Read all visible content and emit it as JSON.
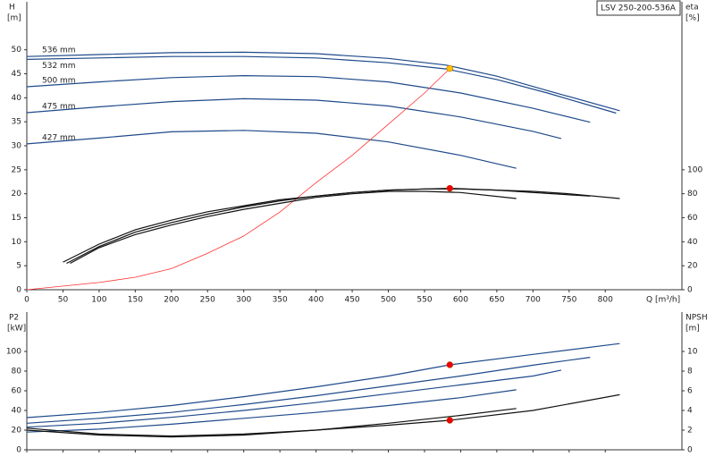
{
  "model": "LSV 250-200-536A",
  "chart_data": [
    {
      "type": "line",
      "ylabel": "H",
      "yunit": "[m]",
      "y2label": "eta",
      "y2unit": "[%]",
      "xlabel": "Q [m³/h]",
      "xlim": [
        0,
        906
      ],
      "xticks": [
        0,
        50,
        100,
        150,
        200,
        250,
        300,
        350,
        400,
        450,
        500,
        550,
        600,
        650,
        700,
        750,
        800
      ],
      "ylim": [
        0,
        60
      ],
      "yticks": [
        0,
        5,
        10,
        15,
        20,
        25,
        30,
        35,
        40,
        45,
        50
      ],
      "y2lim": [
        0,
        240
      ],
      "y2ticks": [
        0,
        20,
        40,
        60,
        80,
        100
      ],
      "series": [
        {
          "name": "536 mm",
          "color": "#1f4a8a",
          "x": [
            0,
            100,
            200,
            300,
            400,
            500,
            580,
            650,
            720,
            820
          ],
          "values": [
            48.6,
            49.0,
            49.4,
            49.5,
            49.2,
            48.2,
            46.8,
            44.5,
            41.5,
            37.3
          ]
        },
        {
          "name": "532 mm",
          "color": "#1f4a8a",
          "x": [
            0,
            100,
            200,
            300,
            400,
            500,
            580,
            650,
            720,
            815
          ],
          "values": [
            48.0,
            48.3,
            48.6,
            48.6,
            48.3,
            47.3,
            46.0,
            43.8,
            41.0,
            36.8
          ]
        },
        {
          "name": "500 mm",
          "color": "#1f4a8a",
          "x": [
            0,
            100,
            200,
            300,
            400,
            500,
            600,
            700,
            779
          ],
          "values": [
            42.3,
            43.3,
            44.2,
            44.6,
            44.4,
            43.3,
            41.0,
            37.8,
            34.9
          ]
        },
        {
          "name": "475 mm",
          "color": "#1f4a8a",
          "x": [
            0,
            100,
            200,
            300,
            400,
            500,
            600,
            700,
            739
          ],
          "values": [
            36.9,
            38.1,
            39.2,
            39.8,
            39.5,
            38.3,
            36.0,
            33.0,
            31.5
          ]
        },
        {
          "name": "427 mm",
          "color": "#1f4a8a",
          "x": [
            0,
            100,
            200,
            300,
            400,
            500,
            600,
            677
          ],
          "values": [
            30.4,
            31.6,
            32.9,
            33.2,
            32.6,
            30.8,
            28.0,
            25.3
          ]
        },
        {
          "color": "#ff3030",
          "x": [
            0,
            100,
            150,
            200,
            250,
            300,
            350,
            400,
            450,
            500,
            550,
            585
          ],
          "values": [
            0,
            1.5,
            2.6,
            4.4,
            7.6,
            11.2,
            16.2,
            22.3,
            28,
            34.5,
            41,
            46.1
          ]
        },
        {
          "color": "#111111",
          "axis": "y2",
          "x": [
            50,
            100,
            150,
            200,
            250,
            300,
            350,
            400,
            450,
            500,
            550,
            585,
            650,
            700,
            750,
            820
          ],
          "values": [
            23,
            38,
            50,
            58,
            65,
            70,
            75,
            78,
            81,
            83,
            84,
            84.5,
            83,
            82,
            80,
            76
          ]
        },
        {
          "color": "#111111",
          "axis": "y2",
          "x": [
            55,
            100,
            150,
            200,
            250,
            300,
            350,
            400,
            450,
            500,
            550,
            600,
            650,
            700,
            779
          ],
          "values": [
            22,
            36,
            48,
            56,
            63,
            69,
            74,
            78,
            81,
            83,
            84,
            84,
            83,
            81,
            78
          ]
        },
        {
          "color": "#111111",
          "axis": "y2",
          "x": [
            60,
            100,
            150,
            200,
            250,
            300,
            350,
            400,
            450,
            500,
            550,
            600,
            677
          ],
          "values": [
            22,
            35,
            46,
            54,
            61,
            67,
            72,
            77,
            80,
            82,
            82,
            81,
            76
          ]
        },
        {
          "color": "#ffc000",
          "marker": true,
          "x": [
            585
          ],
          "values": [
            46.1
          ]
        },
        {
          "color": "#ee0000",
          "marker": true,
          "axis": "y2",
          "x": [
            585
          ],
          "values": [
            84.5
          ]
        }
      ]
    },
    {
      "type": "line",
      "ylabel": "P2",
      "yunit": "[kW]",
      "y2label": "NPSH",
      "y2unit": "[m]",
      "xlim": [
        0,
        906
      ],
      "xticks": [
        0,
        50,
        100,
        150,
        200,
        250,
        300,
        350,
        400,
        450,
        500,
        550,
        600,
        650,
        700,
        750,
        800
      ],
      "ylim": [
        0,
        140
      ],
      "yticks": [
        0,
        20,
        40,
        60,
        80,
        100
      ],
      "y2lim": [
        0,
        14
      ],
      "y2ticks": [
        0,
        2,
        4,
        6,
        8,
        10
      ],
      "series": [
        {
          "color": "#1f4a8a",
          "x": [
            0,
            100,
            200,
            300,
            400,
            500,
            585,
            700,
            820
          ],
          "values": [
            32.7,
            38,
            45,
            54,
            64,
            75,
            86.4,
            97,
            108
          ]
        },
        {
          "color": "#1f4a8a",
          "x": [
            0,
            100,
            200,
            300,
            400,
            500,
            600,
            700,
            779
          ],
          "values": [
            27,
            32,
            38,
            46,
            55,
            65,
            75,
            86,
            94
          ]
        },
        {
          "color": "#1f4a8a",
          "x": [
            0,
            100,
            200,
            300,
            400,
            500,
            600,
            700,
            739
          ],
          "values": [
            23,
            27,
            33,
            40,
            48,
            57,
            66,
            75,
            81
          ]
        },
        {
          "color": "#1f4a8a",
          "x": [
            0,
            100,
            200,
            300,
            400,
            500,
            600,
            677
          ],
          "values": [
            18,
            21,
            26,
            32,
            38,
            45,
            53,
            61
          ]
        },
        {
          "color": "#111111",
          "axis": "y2",
          "x": [
            0,
            100,
            200,
            300,
            400,
            500,
            585,
            700,
            820
          ],
          "values": [
            2.2,
            1.6,
            1.4,
            1.6,
            2.0,
            2.5,
            3.0,
            4.0,
            5.6
          ]
        },
        {
          "color": "#111111",
          "axis": "y2",
          "x": [
            0,
            100,
            200,
            300,
            400,
            500,
            600,
            677
          ],
          "values": [
            2.0,
            1.5,
            1.3,
            1.5,
            2.0,
            2.7,
            3.5,
            4.2
          ]
        },
        {
          "color": "#ee0000",
          "marker": true,
          "x": [
            585
          ],
          "values": [
            86.4
          ]
        },
        {
          "color": "#ee0000",
          "marker": true,
          "axis": "y2",
          "x": [
            585
          ],
          "values": [
            3.0
          ]
        }
      ]
    }
  ]
}
